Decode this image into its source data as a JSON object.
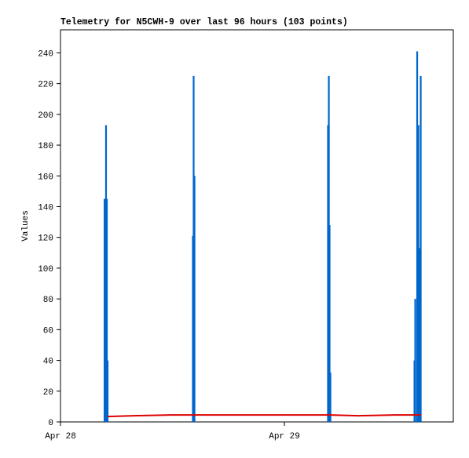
{
  "chart_data": {
    "type": "impulse",
    "title": "Telemetry for N5CWH-9 over last 96 hours (103 points)",
    "y_label": "Values",
    "xlim": [
      0,
      42.1
    ],
    "xticks": [
      {
        "value": 0,
        "label": "Apr 28"
      },
      {
        "value": 24,
        "label": "Apr 29"
      }
    ],
    "ylim": [
      0,
      255
    ],
    "yticks": [
      0,
      20,
      40,
      60,
      80,
      100,
      120,
      140,
      160,
      180,
      200,
      220,
      240
    ],
    "series": [
      {
        "color": "#0066cc",
        "style": "impulse",
        "x": [
          4.72,
          4.8,
          4.88,
          4.97,
          5.05,
          14.19,
          14.27,
          14.36,
          28.67,
          28.76,
          28.84,
          28.93,
          37.94,
          38.02,
          38.23,
          38.36,
          38.48,
          38.61
        ],
        "values": [
          145,
          145,
          193,
          145,
          40,
          121,
          225,
          160,
          193,
          225,
          128,
          32,
          40,
          80,
          241,
          193,
          113,
          225
        ]
      },
      {
        "color": "#dd0000",
        "style": "line",
        "x": [
          5.05,
          7.83,
          11.87,
          28.88,
          31.92,
          35.87,
          38.65
        ],
        "values": [
          3.5,
          4,
          4.5,
          4.5,
          4,
          4.5,
          4.5
        ]
      }
    ]
  }
}
